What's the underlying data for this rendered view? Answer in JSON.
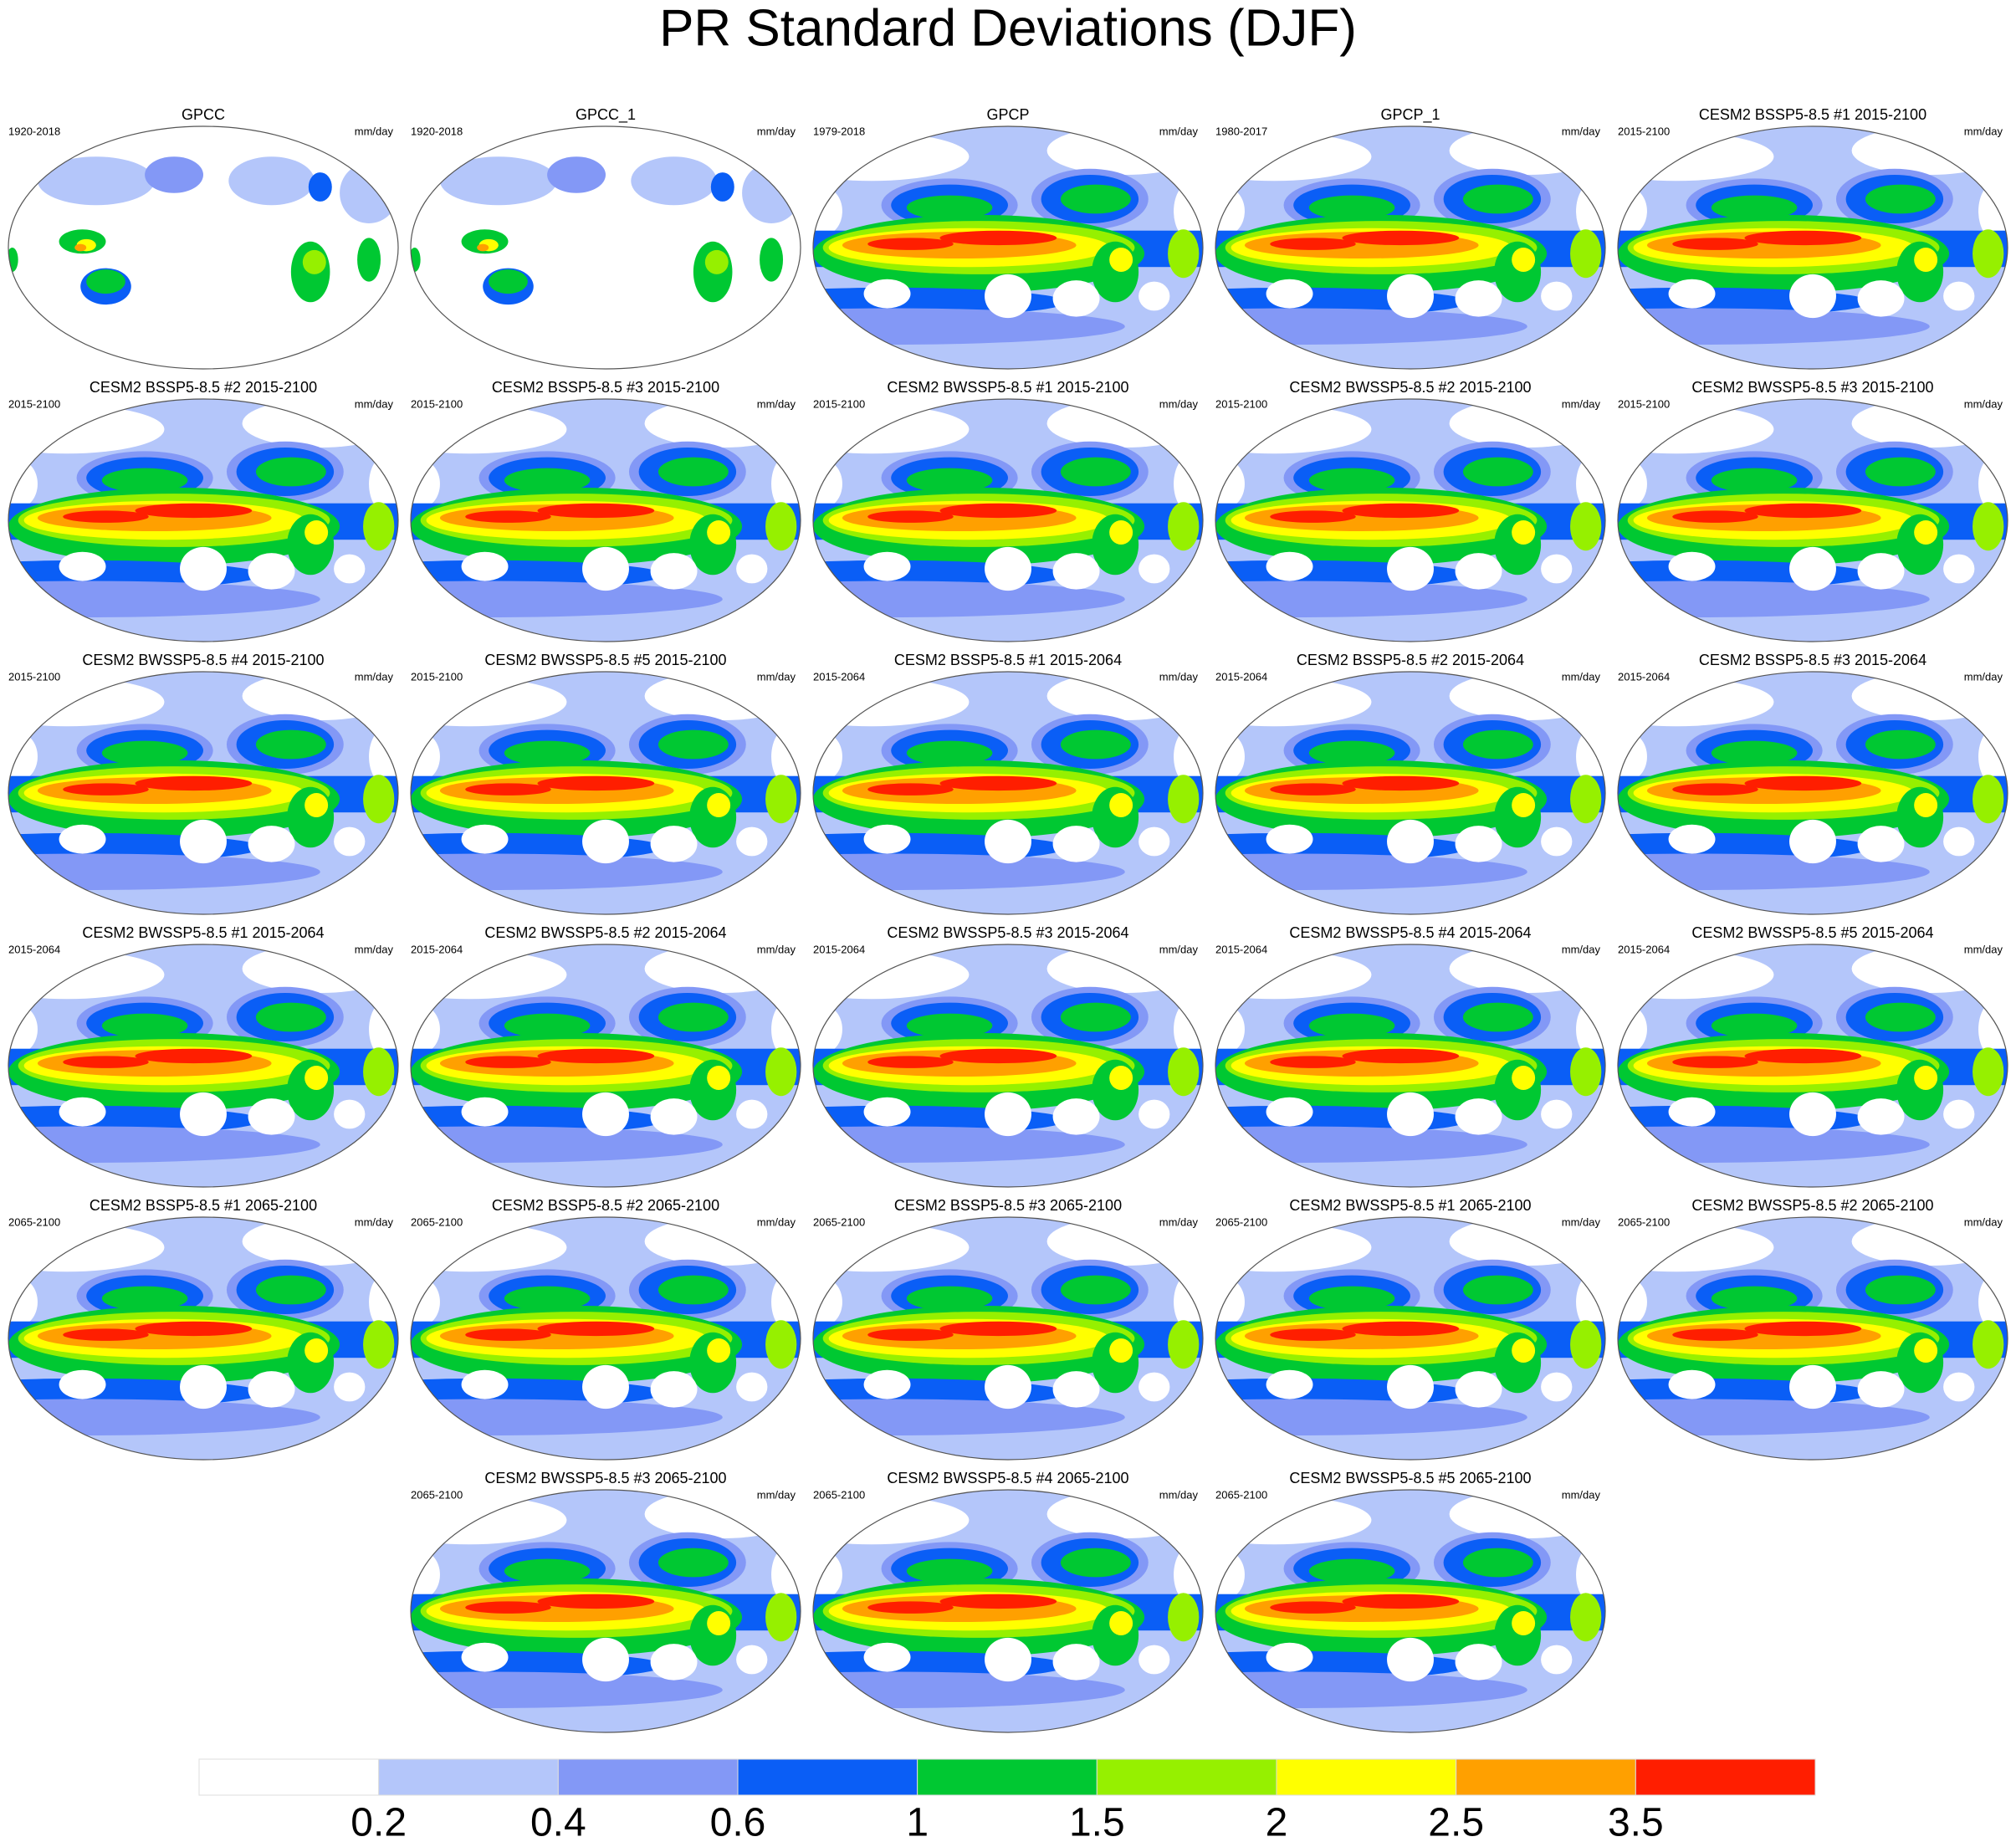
{
  "title": "PR Standard Deviations (DJF)",
  "panels": [
    {
      "title": "GPCC",
      "period": "1920-2018",
      "units": "mm/day"
    },
    {
      "title": "GPCC_1",
      "period": "1920-2018",
      "units": "mm/day"
    },
    {
      "title": "GPCP",
      "period": "1979-2018",
      "units": "mm/day"
    },
    {
      "title": "GPCP_1",
      "period": "1980-2017",
      "units": "mm/day"
    },
    {
      "title": "CESM2 BSSP5-8.5 #1 2015-2100",
      "period": "2015-2100",
      "units": "mm/day"
    },
    {
      "title": "CESM2 BSSP5-8.5 #2 2015-2100",
      "period": "2015-2100",
      "units": "mm/day"
    },
    {
      "title": "CESM2 BSSP5-8.5 #3 2015-2100",
      "period": "2015-2100",
      "units": "mm/day"
    },
    {
      "title": "CESM2 BWSSP5-8.5 #1 2015-2100",
      "period": "2015-2100",
      "units": "mm/day"
    },
    {
      "title": "CESM2 BWSSP5-8.5 #2 2015-2100",
      "period": "2015-2100",
      "units": "mm/day"
    },
    {
      "title": "CESM2 BWSSP5-8.5 #3 2015-2100",
      "period": "2015-2100",
      "units": "mm/day"
    },
    {
      "title": "CESM2 BWSSP5-8.5 #4 2015-2100",
      "period": "2015-2100",
      "units": "mm/day"
    },
    {
      "title": "CESM2 BWSSP5-8.5 #5 2015-2100",
      "period": "2015-2100",
      "units": "mm/day"
    },
    {
      "title": "CESM2 BSSP5-8.5 #1 2015-2064",
      "period": "2015-2064",
      "units": "mm/day"
    },
    {
      "title": "CESM2 BSSP5-8.5 #2 2015-2064",
      "period": "2015-2064",
      "units": "mm/day"
    },
    {
      "title": "CESM2 BSSP5-8.5 #3 2015-2064",
      "period": "2015-2064",
      "units": "mm/day"
    },
    {
      "title": "CESM2 BWSSP5-8.5 #1 2015-2064",
      "period": "2015-2064",
      "units": "mm/day"
    },
    {
      "title": "CESM2 BWSSP5-8.5 #2 2015-2064",
      "period": "2015-2064",
      "units": "mm/day"
    },
    {
      "title": "CESM2 BWSSP5-8.5 #3 2015-2064",
      "period": "2015-2064",
      "units": "mm/day"
    },
    {
      "title": "CESM2 BWSSP5-8.5 #4 2015-2064",
      "period": "2015-2064",
      "units": "mm/day"
    },
    {
      "title": "CESM2 BWSSP5-8.5 #5 2015-2064",
      "period": "2015-2064",
      "units": "mm/day"
    },
    {
      "title": "CESM2 BSSP5-8.5 #1 2065-2100",
      "period": "2065-2100",
      "units": "mm/day"
    },
    {
      "title": "CESM2 BSSP5-8.5 #2 2065-2100",
      "period": "2065-2100",
      "units": "mm/day"
    },
    {
      "title": "CESM2 BSSP5-8.5 #3 2065-2100",
      "period": "2065-2100",
      "units": "mm/day"
    },
    {
      "title": "CESM2 BWSSP5-8.5 #1 2065-2100",
      "period": "2065-2100",
      "units": "mm/day"
    },
    {
      "title": "CESM2 BWSSP5-8.5 #2 2065-2100",
      "period": "2065-2100",
      "units": "mm/day"
    },
    {
      "title": "CESM2 BWSSP5-8.5 #3 2065-2100",
      "period": "2065-2100",
      "units": "mm/day"
    },
    {
      "title": "CESM2 BWSSP5-8.5 #4 2065-2100",
      "period": "2065-2100",
      "units": "mm/day"
    },
    {
      "title": "CESM2 BWSSP5-8.5 #5 2065-2100",
      "period": "2065-2100",
      "units": "mm/day"
    }
  ],
  "colorbar": {
    "levels": [
      0.2,
      0.4,
      0.6,
      1,
      1.5,
      2,
      2.5,
      3.5
    ],
    "colors": [
      "#ffffff",
      "#b4c6fa",
      "#8398f6",
      "#0a5ef6",
      "#00c832",
      "#96f000",
      "#ffff00",
      "#ffa000",
      "#ff1e00"
    ]
  }
}
